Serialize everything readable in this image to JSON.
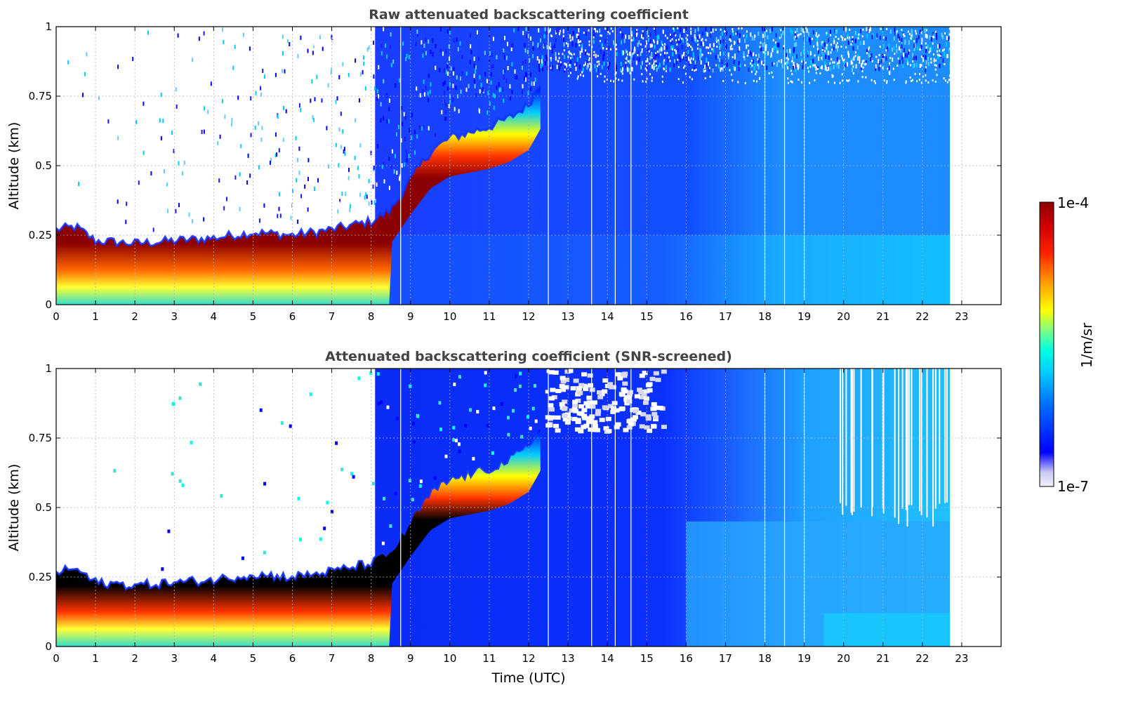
{
  "chart_data": [
    {
      "type": "heatmap",
      "title": "Raw attenuated backscattering coefficient",
      "xlabel": "",
      "ylabel": "Altitude (km)",
      "xlim": [
        0,
        24
      ],
      "ylim": [
        0,
        1
      ],
      "xticks": [
        "0",
        "1",
        "2",
        "3",
        "4",
        "5",
        "6",
        "7",
        "8",
        "9",
        "10",
        "11",
        "12",
        "13",
        "14",
        "15",
        "16",
        "17",
        "18",
        "19",
        "20",
        "21",
        "22",
        "23"
      ],
      "yticks": [
        "0",
        "0.25",
        "0.5",
        "0.75",
        "1"
      ],
      "grid": true,
      "data_end_time": 22.7,
      "screened": false,
      "boundary_layer_top": {
        "time": [
          0,
          0.5,
          1,
          2,
          3,
          4,
          5,
          6,
          7,
          8,
          8.5,
          9,
          9.5,
          10,
          10.5,
          11,
          11.5,
          12,
          12.3
        ],
        "height": [
          0.27,
          0.28,
          0.23,
          0.22,
          0.23,
          0.24,
          0.26,
          0.25,
          0.27,
          0.3,
          0.34,
          0.45,
          0.55,
          0.6,
          0.62,
          0.64,
          0.67,
          0.72,
          0.8
        ]
      }
    },
    {
      "type": "heatmap",
      "title": "Attenuated backscattering coefficient (SNR-screened)",
      "xlabel": "Time (UTC)",
      "ylabel": "Altitude (km)",
      "xlim": [
        0,
        24
      ],
      "ylim": [
        0,
        1
      ],
      "xticks": [
        "0",
        "1",
        "2",
        "3",
        "4",
        "5",
        "6",
        "7",
        "8",
        "9",
        "10",
        "11",
        "12",
        "13",
        "14",
        "15",
        "16",
        "17",
        "18",
        "19",
        "20",
        "21",
        "22",
        "23"
      ],
      "yticks": [
        "0",
        "0.25",
        "0.5",
        "0.75",
        "1"
      ],
      "grid": true,
      "data_end_time": 22.7,
      "screened": true,
      "boundary_layer_top": {
        "time": [
          0,
          0.5,
          1,
          2,
          3,
          4,
          5,
          6,
          7,
          8,
          8.5,
          9,
          9.5,
          10,
          10.5,
          11,
          11.5,
          12,
          12.3
        ],
        "height": [
          0.27,
          0.28,
          0.23,
          0.22,
          0.23,
          0.24,
          0.26,
          0.25,
          0.27,
          0.3,
          0.34,
          0.45,
          0.55,
          0.6,
          0.62,
          0.64,
          0.67,
          0.72,
          0.8
        ]
      }
    }
  ],
  "colorbar": {
    "label": "1/m/sr",
    "min_label": "1e-7",
    "max_label": "1e-4",
    "scale": "log",
    "range": [
      1e-07,
      0.0001
    ],
    "colors": [
      "#f2f2fb",
      "#0000ff",
      "#00bfff",
      "#00ffff",
      "#ffff00",
      "#ff8000",
      "#ff0000",
      "#8b0000"
    ]
  }
}
